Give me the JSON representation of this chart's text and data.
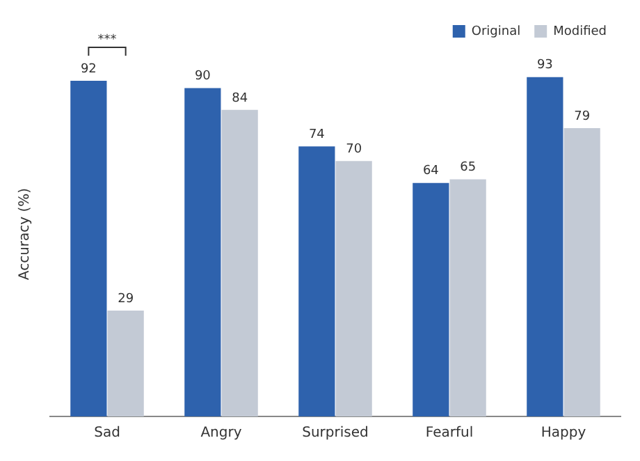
{
  "chart_data": {
    "type": "bar",
    "ylabel": "Accuracy (%)",
    "categories": [
      "Sad",
      "Angry",
      "Surprised",
      "Fearful",
      "Happy"
    ],
    "series": [
      {
        "name": "Original",
        "color": "#2e62ad",
        "values": [
          92,
          90,
          74,
          64,
          93
        ]
      },
      {
        "name": "Modified",
        "color": "#c3cad5",
        "values": [
          29,
          84,
          70,
          65,
          79
        ]
      }
    ],
    "tick_labels": "x",
    "data_labels": true,
    "legend": "top right",
    "grid": false,
    "annotations": [
      "***"
    ]
  }
}
